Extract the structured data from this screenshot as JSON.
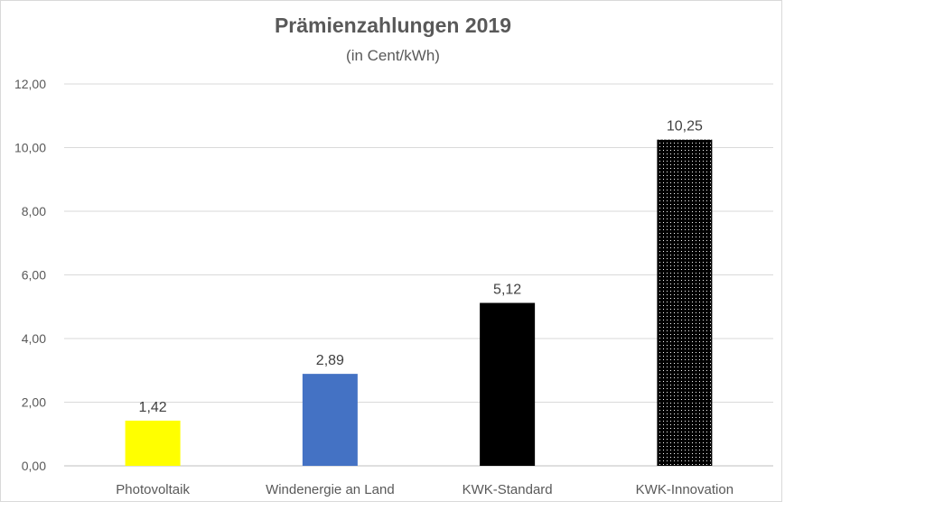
{
  "chart_data": {
    "type": "bar",
    "title": "Prämienzahlungen 2019",
    "subtitle": "(in Cent/kWh)",
    "xlabel": "",
    "ylabel": "",
    "ylim": [
      0,
      12
    ],
    "yticks": [
      0,
      2,
      4,
      6,
      8,
      10,
      12
    ],
    "ytick_labels": [
      "0,00",
      "2,00",
      "4,00",
      "6,00",
      "8,00",
      "10,00",
      "12,00"
    ],
    "grid": true,
    "categories": [
      "Photovoltaik",
      "Windenergie an Land",
      "KWK-Standard",
      "KWK-Innovation"
    ],
    "values": [
      1.42,
      2.89,
      5.12,
      10.25
    ],
    "value_labels": [
      "1,42",
      "2,89",
      "5,12",
      "10,25"
    ],
    "colors": [
      "#ffff00",
      "#4472c4",
      "#000000",
      "#000000"
    ],
    "patterns": [
      "solid",
      "solid",
      "solid",
      "dotted"
    ]
  }
}
